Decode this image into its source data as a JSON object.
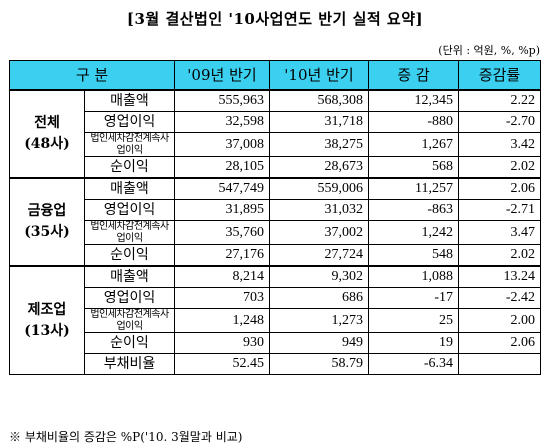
{
  "title": "[3월 결산법인 '10사업연도 반기 실적 요약]",
  "unit": "(단위 : 억원, %, %p)",
  "header": [
    "구  분",
    "'09년 반기",
    "'10년 반기",
    "증  감",
    "증감률"
  ],
  "groups": [
    {
      "name": "전체",
      "count": "(48사)",
      "rows": [
        {
          "item": "매출액",
          "y09": "555,963",
          "y10": "568,308",
          "change": "12,345",
          "rate": "2.22"
        },
        {
          "item": "영업이익",
          "y09": "32,598",
          "y10": "31,718",
          "change": "-880",
          "rate": "-2.70"
        },
        {
          "item": "법인세차감전계속사업이익",
          "y09": "37,008",
          "y10": "38,275",
          "change": "1,267",
          "rate": "3.42"
        },
        {
          "item": "순이익",
          "y09": "28,105",
          "y10": "28,673",
          "change": "568",
          "rate": "2.02"
        }
      ]
    },
    {
      "name": "금융업",
      "count": "(35사)",
      "rows": [
        {
          "item": "매출액",
          "y09": "547,749",
          "y10": "559,006",
          "change": "11,257",
          "rate": "2.06"
        },
        {
          "item": "영업이익",
          "y09": "31,895",
          "y10": "31,032",
          "change": "-863",
          "rate": "-2.71"
        },
        {
          "item": "법인세차감전계속사업이익",
          "y09": "35,760",
          "y10": "37,002",
          "change": "1,242",
          "rate": "3.47"
        },
        {
          "item": "순이익",
          "y09": "27,176",
          "y10": "27,724",
          "change": "548",
          "rate": "2.02"
        }
      ]
    },
    {
      "name": "제조업",
      "count": "(13사)",
      "rows": [
        {
          "item": "매출액",
          "y09": "8,214",
          "y10": "9,302",
          "change": "1,088",
          "rate": "13.24"
        },
        {
          "item": "영업이익",
          "y09": "703",
          "y10": "686",
          "change": "-17",
          "rate": "-2.42"
        },
        {
          "item": "법인세차감전계속사업이익",
          "y09": "1,248",
          "y10": "1,273",
          "change": "25",
          "rate": "2.00"
        },
        {
          "item": "순이익",
          "y09": "930",
          "y10": "949",
          "change": "19",
          "rate": "2.06"
        },
        {
          "item": "부채비율",
          "y09": "52.45",
          "y10": "58.79",
          "change": "-6.34",
          "rate": ""
        }
      ]
    }
  ],
  "footnote": "※ 부채비율의 증감은 %P('10. 3월말과 비교)",
  "colors": {
    "header_bg": "#3cd0f0"
  }
}
